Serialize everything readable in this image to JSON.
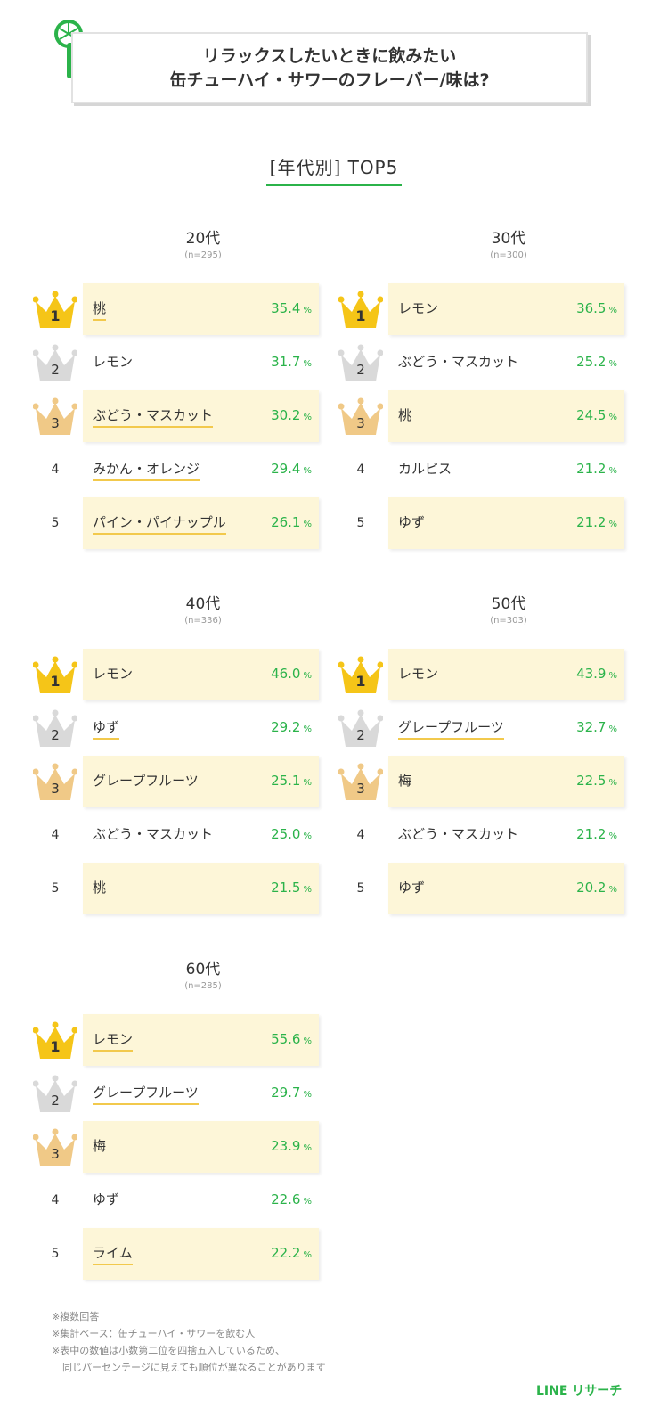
{
  "header": {
    "title_line1": "リラックスしたいときに飲みたい",
    "title_line2": "缶チューハイ・サワーのフレーバー/味は?"
  },
  "section_title": "[年代別] TOP5",
  "colors": {
    "accent_green": "#2bb34a",
    "row_bg": "#fdf6d8",
    "underline": "#f2c94c",
    "gold": "#f5c518",
    "silver": "#d9d9d9",
    "bronze": "#f0c987"
  },
  "chart_data": {
    "type": "table",
    "title": "[年代別] TOP5",
    "unit": "%",
    "groups": [
      {
        "age": "20代",
        "n": "(n=295)",
        "items": [
          {
            "rank": "1",
            "name": "桃",
            "value": 35.4,
            "value_label": "35.4",
            "shaded": true,
            "underline": true
          },
          {
            "rank": "2",
            "name": "レモン",
            "value": 31.7,
            "value_label": "31.7",
            "shaded": false,
            "underline": false
          },
          {
            "rank": "3",
            "name": "ぶどう・マスカット",
            "value": 30.2,
            "value_label": "30.2",
            "shaded": true,
            "underline": true
          },
          {
            "rank": "4",
            "name": "みかん・オレンジ",
            "value": 29.4,
            "value_label": "29.4",
            "shaded": false,
            "underline": true
          },
          {
            "rank": "5",
            "name": "パイン・パイナップル",
            "value": 26.1,
            "value_label": "26.1",
            "shaded": true,
            "underline": true
          }
        ]
      },
      {
        "age": "30代",
        "n": "(n=300)",
        "items": [
          {
            "rank": "1",
            "name": "レモン",
            "value": 36.5,
            "value_label": "36.5",
            "shaded": true,
            "underline": false
          },
          {
            "rank": "2",
            "name": "ぶどう・マスカット",
            "value": 25.2,
            "value_label": "25.2",
            "shaded": false,
            "underline": false
          },
          {
            "rank": "3",
            "name": "桃",
            "value": 24.5,
            "value_label": "24.5",
            "shaded": true,
            "underline": false
          },
          {
            "rank": "4",
            "name": "カルピス",
            "value": 21.2,
            "value_label": "21.2",
            "shaded": false,
            "underline": false
          },
          {
            "rank": "5",
            "name": "ゆず",
            "value": 21.2,
            "value_label": "21.2",
            "shaded": true,
            "underline": false
          }
        ]
      },
      {
        "age": "40代",
        "n": "(n=336)",
        "items": [
          {
            "rank": "1",
            "name": "レモン",
            "value": 46.0,
            "value_label": "46.0",
            "shaded": true,
            "underline": false
          },
          {
            "rank": "2",
            "name": "ゆず",
            "value": 29.2,
            "value_label": "29.2",
            "shaded": false,
            "underline": true
          },
          {
            "rank": "3",
            "name": "グレープフルーツ",
            "value": 25.1,
            "value_label": "25.1",
            "shaded": true,
            "underline": false
          },
          {
            "rank": "4",
            "name": "ぶどう・マスカット",
            "value": 25.0,
            "value_label": "25.0",
            "shaded": false,
            "underline": false
          },
          {
            "rank": "5",
            "name": "桃",
            "value": 21.5,
            "value_label": "21.5",
            "shaded": true,
            "underline": false
          }
        ]
      },
      {
        "age": "50代",
        "n": "(n=303)",
        "items": [
          {
            "rank": "1",
            "name": "レモン",
            "value": 43.9,
            "value_label": "43.9",
            "shaded": true,
            "underline": false
          },
          {
            "rank": "2",
            "name": "グレープフルーツ",
            "value": 32.7,
            "value_label": "32.7",
            "shaded": false,
            "underline": true
          },
          {
            "rank": "3",
            "name": "梅",
            "value": 22.5,
            "value_label": "22.5",
            "shaded": true,
            "underline": false
          },
          {
            "rank": "4",
            "name": "ぶどう・マスカット",
            "value": 21.2,
            "value_label": "21.2",
            "shaded": false,
            "underline": false
          },
          {
            "rank": "5",
            "name": "ゆず",
            "value": 20.2,
            "value_label": "20.2",
            "shaded": true,
            "underline": false
          }
        ]
      },
      {
        "age": "60代",
        "n": "(n=285)",
        "items": [
          {
            "rank": "1",
            "name": "レモン",
            "value": 55.6,
            "value_label": "55.6",
            "shaded": true,
            "underline": true
          },
          {
            "rank": "2",
            "name": "グレープフルーツ",
            "value": 29.7,
            "value_label": "29.7",
            "shaded": false,
            "underline": true
          },
          {
            "rank": "3",
            "name": "梅",
            "value": 23.9,
            "value_label": "23.9",
            "shaded": true,
            "underline": false
          },
          {
            "rank": "4",
            "name": "ゆず",
            "value": 22.6,
            "value_label": "22.6",
            "shaded": false,
            "underline": false
          },
          {
            "rank": "5",
            "name": "ライム",
            "value": 22.2,
            "value_label": "22.2",
            "shaded": true,
            "underline": true
          }
        ]
      }
    ]
  },
  "notes": [
    "※複数回答",
    "※集計ベース：缶チューハイ・サワーを飲む人",
    "※表中の数値は小数第二位を四捨五入しているため、",
    "同じパーセンテージに見えても順位が異なることがあります"
  ],
  "brand": "LINE リサーチ"
}
